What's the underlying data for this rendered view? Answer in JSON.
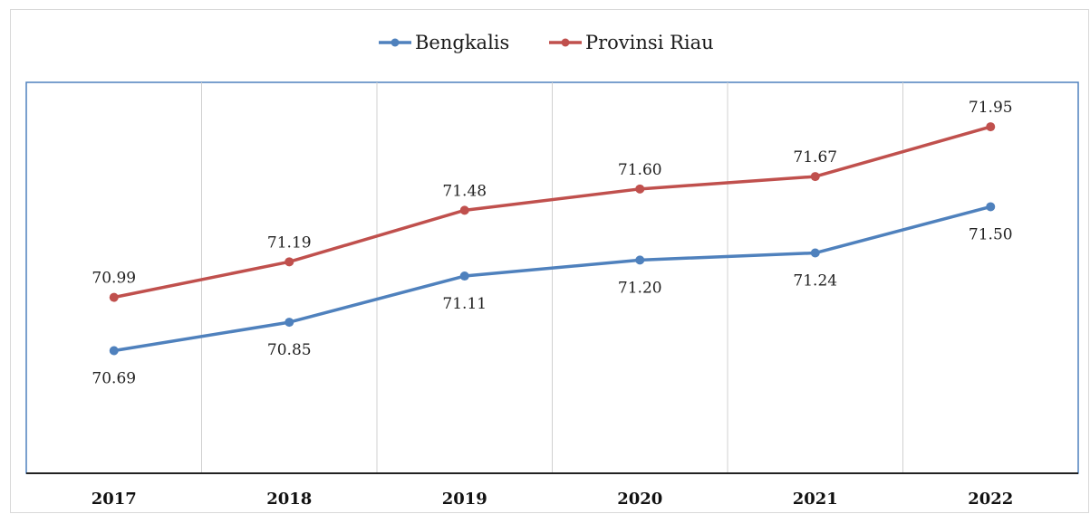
{
  "chart_data": {
    "type": "line",
    "title": "",
    "xlabel": "",
    "ylabel": "",
    "categories": [
      "2017",
      "2018",
      "2019",
      "2020",
      "2021",
      "2022"
    ],
    "series": [
      {
        "name": "Bengkalis",
        "color": "#4f81bd",
        "values": [
          70.69,
          70.85,
          71.11,
          71.2,
          71.24,
          71.5
        ],
        "labels": [
          "70.69",
          "70.85",
          "71.11",
          "71.20",
          "71.24",
          "71.50"
        ],
        "label_position": "below"
      },
      {
        "name": "Provinsi Riau",
        "color": "#c0504d",
        "values": [
          70.99,
          71.19,
          71.48,
          71.6,
          71.67,
          71.95
        ],
        "labels": [
          "70.99",
          "71.19",
          "71.48",
          "71.60",
          "71.67",
          "71.95"
        ],
        "label_position": "above"
      }
    ],
    "ylim": [
      70.0,
      72.2
    ],
    "grid": "vertical",
    "legend_position": "top-center"
  }
}
